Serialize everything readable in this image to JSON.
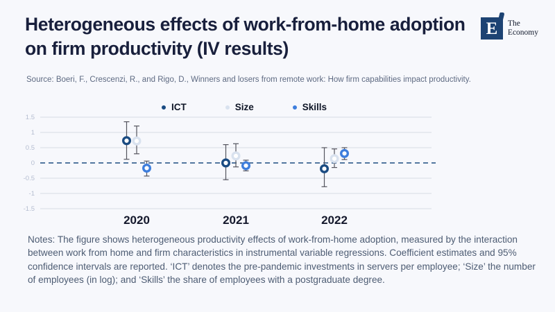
{
  "header": {
    "title": "Heterogeneous effects of work-from-home adoption on firm productivity (IV results)",
    "source": "Source: Boeri, F., Crescenzi, R., and Rigo, D., Winners and losers from remote work: How firm capabilities impact productivity.",
    "logo": {
      "glyph": "E",
      "mark": "’",
      "name_line1": "The",
      "name_line2": "Economy"
    }
  },
  "notes": "Notes: The figure shows heterogeneous productivity effects of work-from-home adoption, measured by the interaction between work from home and firm characteristics in instrumental variable regressions. Coefficient estimates and 95% confidence intervals are reported. ‘ICT’ denotes the pre-pandemic investments in servers per employee; ‘Size’ the number of employees (in log); and ‘Skills’ the share of employees with a postgraduate degree.",
  "colors": {
    "background": "#f7f8fc",
    "title_text": "#181f3c",
    "source_text": "#5e6a82",
    "notes_text": "#4d5c73",
    "gridline": "#d7dbe4",
    "tick_label": "#b4bdd0",
    "zero_line": "#1b4a80",
    "error_bar": "#54545e",
    "year_label": "#14182c",
    "logo_navy": "#1d4373",
    "ict_navy": "#1a4b82",
    "size_light": "#d9e2ef",
    "skills_blue": "#3e7edd"
  },
  "chart_data": {
    "type": "scatter",
    "subtype": "coefficient-plot-with-95pct-confidence-intervals",
    "title": "",
    "xlabel": "",
    "ylabel": "",
    "categories": [
      "2020",
      "2021",
      "2022"
    ],
    "series": [
      {
        "name": "ICT",
        "color": "#1a4b82",
        "values": [
          0.73,
          0.0,
          -0.19
        ],
        "ci_low": [
          0.12,
          -0.55,
          -0.78
        ],
        "ci_high": [
          1.35,
          0.6,
          0.5
        ]
      },
      {
        "name": "Size",
        "color": "#d9e2ef",
        "values": [
          0.72,
          0.23,
          0.14
        ],
        "ci_low": [
          0.3,
          -0.13,
          -0.15
        ],
        "ci_high": [
          1.21,
          0.63,
          0.46
        ]
      },
      {
        "name": "Skills",
        "color": "#3e7edd",
        "values": [
          -0.17,
          -0.09,
          0.31
        ],
        "ci_low": [
          -0.43,
          -0.26,
          0.11
        ],
        "ci_high": [
          0.06,
          0.09,
          0.5
        ]
      }
    ],
    "yticks": [
      1.5,
      1,
      0.5,
      0,
      -0.5,
      -1,
      -1.5
    ],
    "ylim": [
      -1.5,
      1.5
    ],
    "zero_line": "dashed",
    "grid": true,
    "legend_position": "top-center"
  }
}
